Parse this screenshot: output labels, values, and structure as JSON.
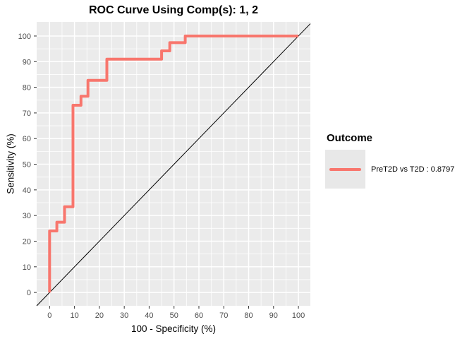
{
  "title": "ROC Curve Using Comp(s): 1, 2",
  "axes": {
    "x_label": "100 - Specificity (%)",
    "y_label": "Sensitivity (%)"
  },
  "legend": {
    "title": "Outcome",
    "entries": [
      {
        "label": "PreT2D vs T2D : 0.8797",
        "color": "#F8766D"
      }
    ]
  },
  "colors": {
    "curve": "#F8766D",
    "panel_bg": "#EBEBEB",
    "grid": "#FFFFFF",
    "tick_mark": "#333333",
    "tick_label": "#4D4D4D",
    "reference_line": "#000000",
    "legend_key_bg": "#E8E8E8"
  },
  "chart_data": {
    "type": "line",
    "subtype": "roc-step-curve",
    "title": "ROC Curve Using Comp(s): 1, 2",
    "xlabel": "100 - Specificity (%)",
    "ylabel": "Sensitivity (%)",
    "xlim": [
      -5.2,
      104.8
    ],
    "ylim": [
      -5.2,
      105.5
    ],
    "x_ticks": [
      0,
      10,
      20,
      30,
      40,
      50,
      60,
      70,
      80,
      90,
      100
    ],
    "y_ticks": [
      0,
      10,
      20,
      30,
      40,
      50,
      60,
      70,
      80,
      90,
      100
    ],
    "grid": {
      "major_every": 10,
      "minor_every": 5,
      "color": "#FFFFFF",
      "panel_bg": "#EBEBEB"
    },
    "series": [
      {
        "name": "PreT2D vs T2D : 0.8797",
        "color": "#F8766D",
        "line_width": 4,
        "points": [
          [
            0,
            0
          ],
          [
            0,
            24
          ],
          [
            2.9,
            24
          ],
          [
            2.9,
            27.4
          ],
          [
            6,
            27.4
          ],
          [
            6,
            33.4
          ],
          [
            9.4,
            33.4
          ],
          [
            9.4,
            73
          ],
          [
            12.6,
            73
          ],
          [
            12.6,
            76.5
          ],
          [
            15.4,
            76.5
          ],
          [
            15.4,
            82.7
          ],
          [
            23,
            82.7
          ],
          [
            23,
            91
          ],
          [
            45,
            91
          ],
          [
            45,
            94.2
          ],
          [
            48.3,
            94.2
          ],
          [
            48.3,
            97.4
          ],
          [
            54.5,
            97.4
          ],
          [
            54.5,
            100
          ],
          [
            100,
            100
          ]
        ]
      }
    ],
    "reference_line": {
      "type": "diagonal",
      "slope": 1,
      "intercept": 0,
      "color": "#000000",
      "width": 1
    },
    "legend": {
      "position": "right",
      "title": "Outcome",
      "entries": [
        {
          "label": "PreT2D vs T2D : 0.8797",
          "color": "#F8766D"
        }
      ]
    }
  }
}
